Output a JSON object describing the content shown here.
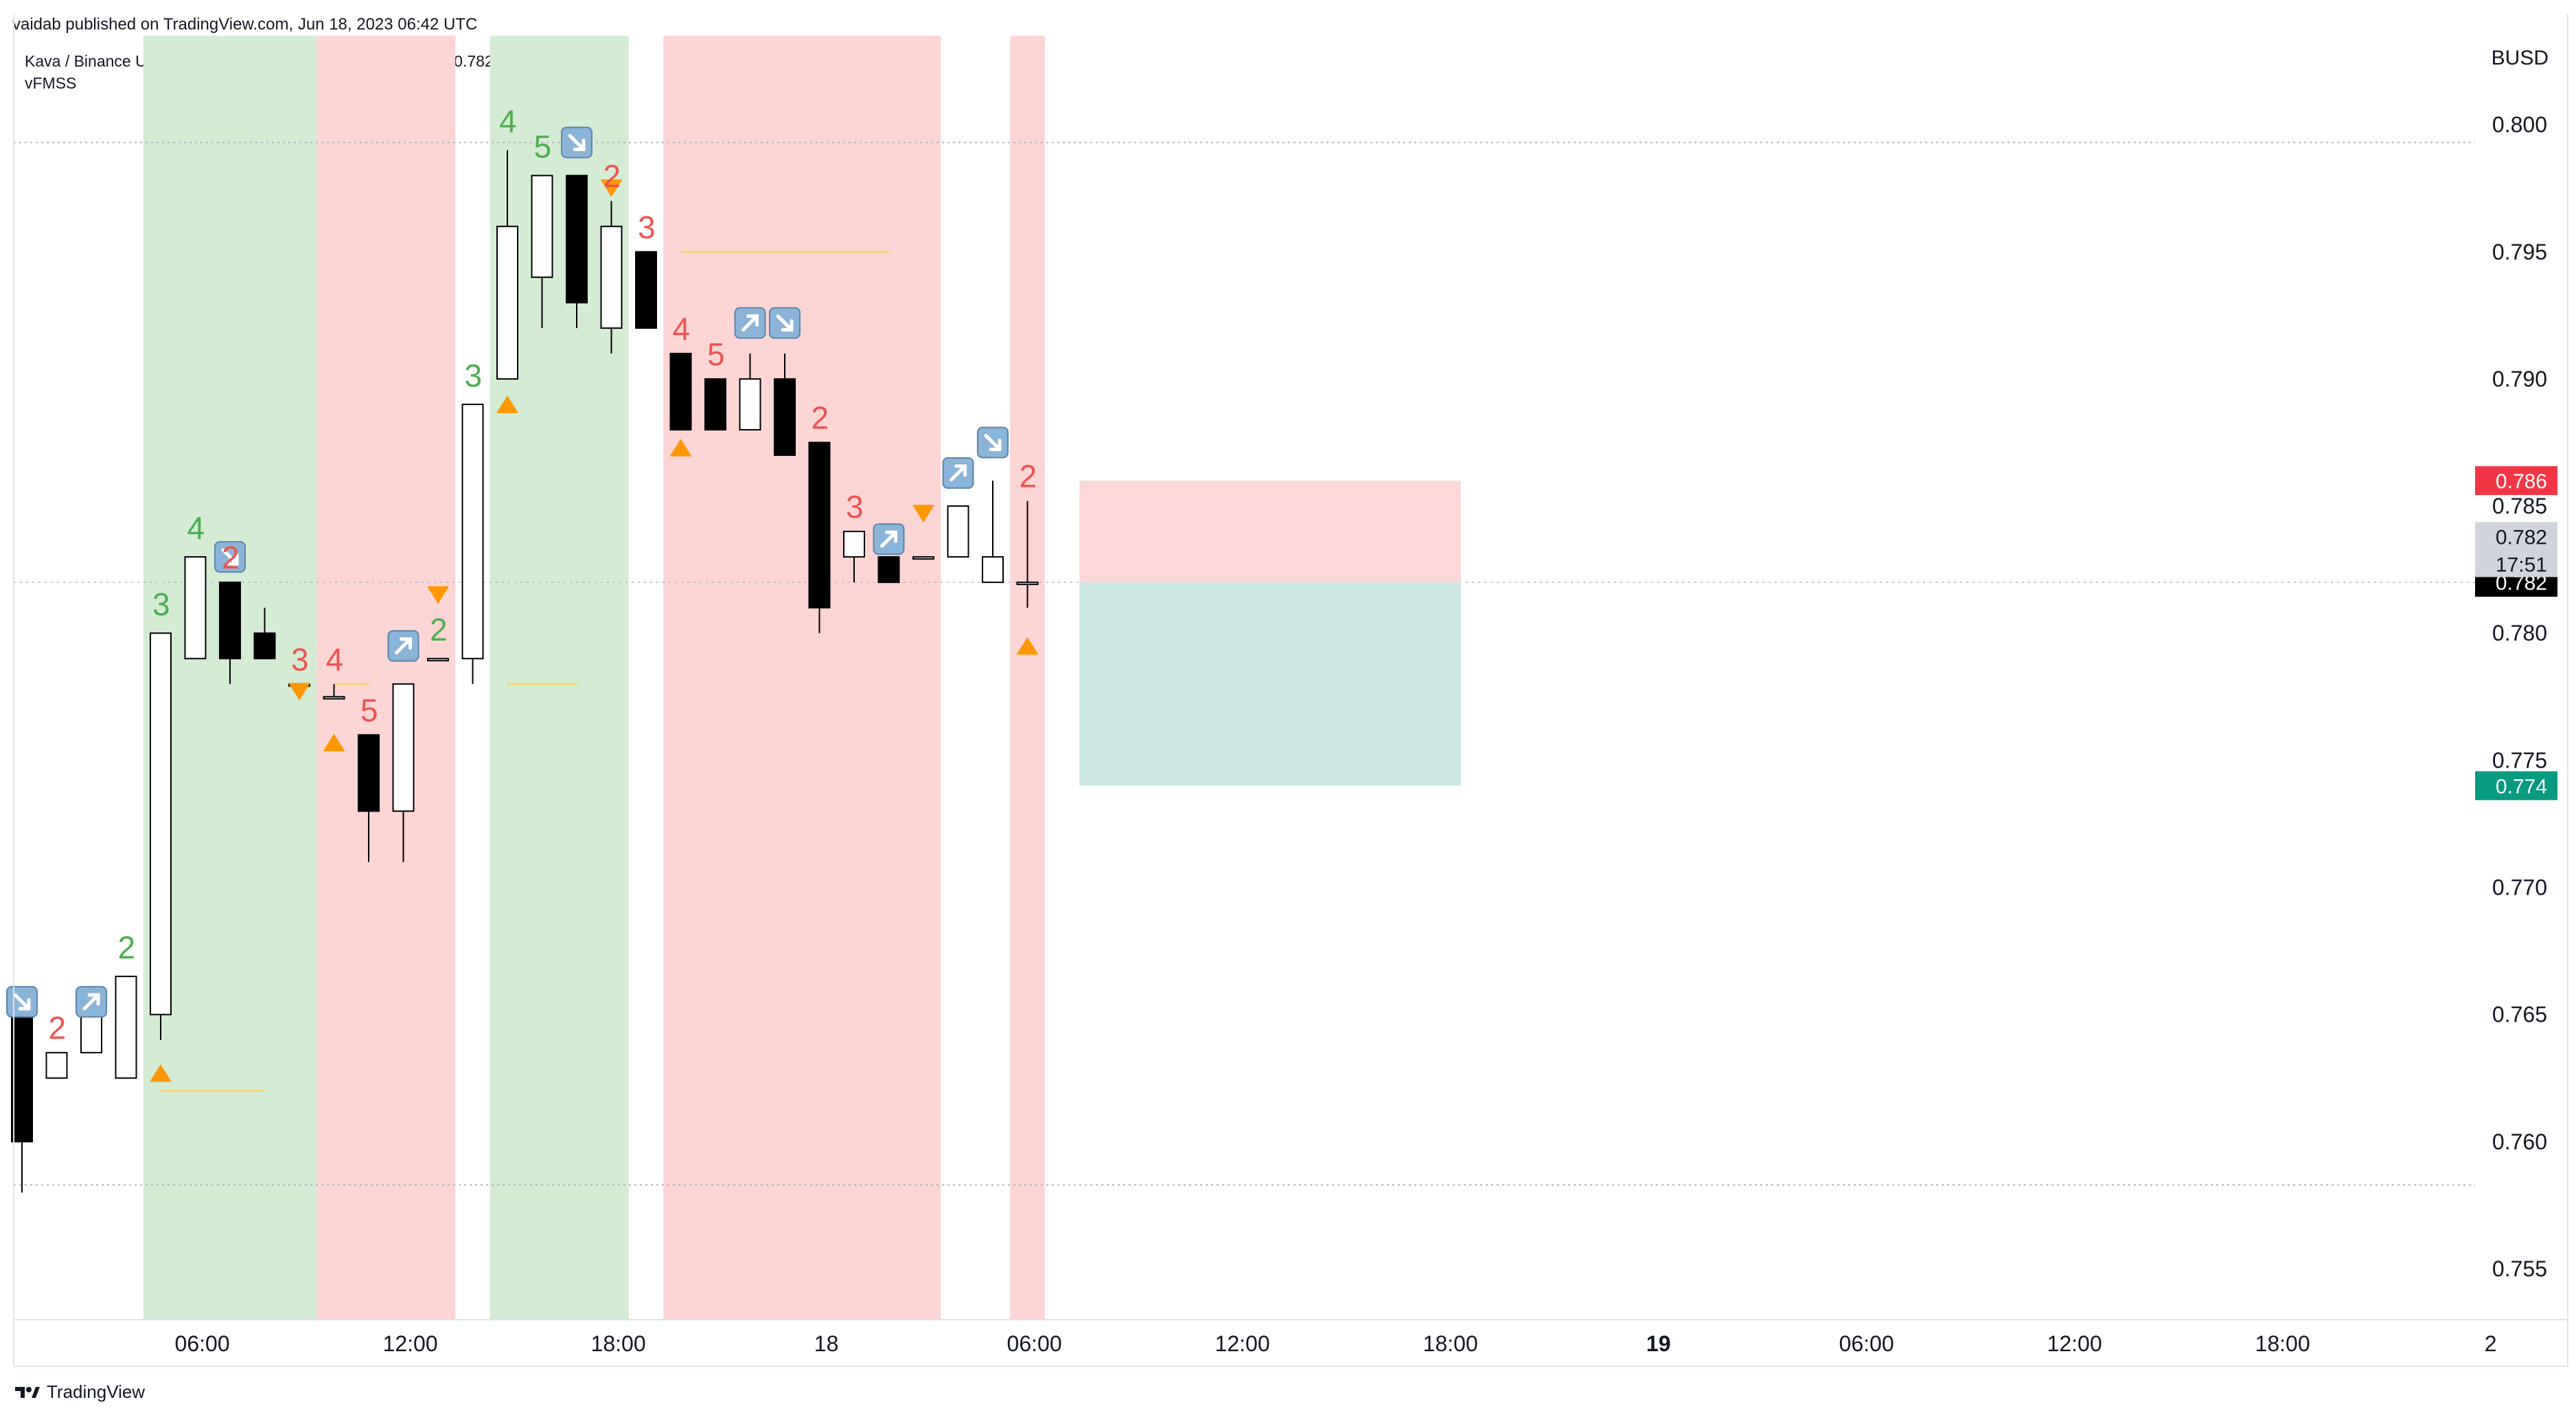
{
  "header": {
    "publisher": "vaidab published on TradingView.com, Jun 18, 2023 06:42 UTC",
    "symbol": "Kava / Binance USD, 1h, BINANCE  O0.782  H0.785  L0.781  C0.782",
    "indicator": "vFMSS",
    "currency": "BUSD"
  },
  "footer": {
    "brand": "TradingView"
  },
  "colors": {
    "bull_zone": "#d4ecd4",
    "bear_zone": "#fdd5d5",
    "green_count": "#4caf50",
    "red_count": "#ef5350",
    "marker": "#ff9800",
    "stop_zone": "#fdd8d8",
    "target_zone": "#cce8e4"
  },
  "chart_data": {
    "type": "candlestick",
    "timeframe": "1h",
    "ylim": [
      0.753,
      0.8035
    ],
    "y_ticks": [
      "0.800",
      "0.795",
      "0.790",
      "0.785",
      "0.780",
      "0.775",
      "0.770",
      "0.765",
      "0.760",
      "0.755"
    ],
    "x_ticks": [
      "06:00",
      "12:00",
      "18:00",
      "18",
      "06:00",
      "12:00",
      "18:00",
      "19",
      "06:00",
      "12:00",
      "18:00",
      "2"
    ],
    "candles": [
      {
        "o": 0.765,
        "h": 0.766,
        "l": 0.758,
        "c": 0.76
      },
      {
        "o": 0.7625,
        "h": 0.7635,
        "l": 0.7625,
        "c": 0.7635
      },
      {
        "o": 0.7635,
        "h": 0.7655,
        "l": 0.7635,
        "c": 0.7655
      },
      {
        "o": 0.7625,
        "h": 0.7665,
        "l": 0.7625,
        "c": 0.7665
      },
      {
        "o": 0.765,
        "h": 0.78,
        "l": 0.764,
        "c": 0.78
      },
      {
        "o": 0.779,
        "h": 0.783,
        "l": 0.779,
        "c": 0.783
      },
      {
        "o": 0.782,
        "h": 0.782,
        "l": 0.778,
        "c": 0.779
      },
      {
        "o": 0.78,
        "h": 0.781,
        "l": 0.779,
        "c": 0.779
      },
      {
        "o": 0.778,
        "h": 0.778,
        "l": 0.778,
        "c": 0.778
      },
      {
        "o": 0.7775,
        "h": 0.778,
        "l": 0.7775,
        "c": 0.7775
      },
      {
        "o": 0.776,
        "h": 0.776,
        "l": 0.771,
        "c": 0.773
      },
      {
        "o": 0.773,
        "h": 0.778,
        "l": 0.771,
        "c": 0.778
      },
      {
        "o": 0.779,
        "h": 0.779,
        "l": 0.779,
        "c": 0.779
      },
      {
        "o": 0.779,
        "h": 0.789,
        "l": 0.778,
        "c": 0.789
      },
      {
        "o": 0.79,
        "h": 0.799,
        "l": 0.79,
        "c": 0.796
      },
      {
        "o": 0.794,
        "h": 0.798,
        "l": 0.792,
        "c": 0.798
      },
      {
        "o": 0.798,
        "h": 0.798,
        "l": 0.792,
        "c": 0.793
      },
      {
        "o": 0.792,
        "h": 0.797,
        "l": 0.791,
        "c": 0.796
      },
      {
        "o": 0.795,
        "h": 0.795,
        "l": 0.792,
        "c": 0.792
      },
      {
        "o": 0.791,
        "h": 0.791,
        "l": 0.788,
        "c": 0.788
      },
      {
        "o": 0.79,
        "h": 0.79,
        "l": 0.788,
        "c": 0.788
      },
      {
        "o": 0.788,
        "h": 0.791,
        "l": 0.788,
        "c": 0.79
      },
      {
        "o": 0.79,
        "h": 0.791,
        "l": 0.787,
        "c": 0.787
      },
      {
        "o": 0.7875,
        "h": 0.7875,
        "l": 0.78,
        "c": 0.781
      },
      {
        "o": 0.783,
        "h": 0.784,
        "l": 0.782,
        "c": 0.784
      },
      {
        "o": 0.783,
        "h": 0.783,
        "l": 0.782,
        "c": 0.782
      },
      {
        "o": 0.783,
        "h": 0.783,
        "l": 0.783,
        "c": 0.783
      },
      {
        "o": 0.783,
        "h": 0.785,
        "l": 0.783,
        "c": 0.785
      },
      {
        "o": 0.782,
        "h": 0.786,
        "l": 0.782,
        "c": 0.783
      },
      {
        "o": 0.782,
        "h": 0.7852,
        "l": 0.781,
        "c": 0.782
      }
    ],
    "price_lines": [
      "0.786",
      "0.782",
      "0.782",
      "0.774"
    ],
    "countdown": "17:51",
    "counts": [
      {
        "i": 1,
        "label": "2",
        "color": "red"
      },
      {
        "i": 3,
        "label": "2",
        "color": "green"
      },
      {
        "i": 4,
        "label": "3",
        "color": "green"
      },
      {
        "i": 5,
        "label": "4",
        "color": "green"
      },
      {
        "i": 6,
        "label": "2",
        "color": "red"
      },
      {
        "i": 8,
        "label": "3",
        "color": "red"
      },
      {
        "i": 9,
        "label": "4",
        "color": "red"
      },
      {
        "i": 10,
        "label": "5",
        "color": "red"
      },
      {
        "i": 12,
        "label": "2",
        "color": "green"
      },
      {
        "i": 13,
        "label": "3",
        "color": "green"
      },
      {
        "i": 14,
        "label": "4",
        "color": "green"
      },
      {
        "i": 15,
        "label": "5",
        "color": "green"
      },
      {
        "i": 17,
        "label": "2",
        "color": "red"
      },
      {
        "i": 18,
        "label": "3",
        "color": "red"
      },
      {
        "i": 19,
        "label": "4",
        "color": "red"
      },
      {
        "i": 20,
        "label": "5",
        "color": "red"
      },
      {
        "i": 23,
        "label": "2",
        "color": "red"
      },
      {
        "i": 24,
        "label": "3",
        "color": "red"
      },
      {
        "i": 29,
        "label": "2",
        "color": "red"
      }
    ],
    "arrows": [
      {
        "i": 0,
        "dir": "down-right",
        "y": 0.7655
      },
      {
        "i": 2,
        "dir": "up-right",
        "y": 0.7655
      },
      {
        "i": 6,
        "dir": "down-right",
        "y": 0.783
      },
      {
        "i": 11,
        "dir": "up-right",
        "y": 0.7795
      },
      {
        "i": 16,
        "dir": "down-right",
        "y": 0.7993
      },
      {
        "i": 21,
        "dir": "up-right",
        "y": 0.7922
      },
      {
        "i": 22,
        "dir": "down-right",
        "y": 0.7922
      },
      {
        "i": 25,
        "dir": "up-right",
        "y": 0.7837
      },
      {
        "i": 27,
        "dir": "up-right",
        "y": 0.7863
      },
      {
        "i": 28,
        "dir": "down-right",
        "y": 0.7875
      }
    ],
    "markers": [
      {
        "i": 4,
        "dir": "up",
        "y": 0.7627
      },
      {
        "i": 8,
        "dir": "down",
        "y": 0.7777
      },
      {
        "i": 9,
        "dir": "up",
        "y": 0.7757
      },
      {
        "i": 12,
        "dir": "down",
        "y": 0.7815
      },
      {
        "i": 14,
        "dir": "up",
        "y": 0.789
      },
      {
        "i": 17,
        "dir": "down",
        "y": 0.7975
      },
      {
        "i": 19,
        "dir": "up",
        "y": 0.7873
      },
      {
        "i": 26,
        "dir": "down",
        "y": 0.7847
      },
      {
        "i": 29,
        "dir": "up",
        "y": 0.7795
      }
    ],
    "zones": [
      {
        "from": 3.5,
        "to": 8.5,
        "color": "bull"
      },
      {
        "from": 8.5,
        "to": 12.5,
        "color": "bear"
      },
      {
        "from": 13.5,
        "to": 17.5,
        "color": "bull"
      },
      {
        "from": 18.5,
        "to": 26.5,
        "color": "bear"
      },
      {
        "from": 28.5,
        "to": 29.5,
        "color": "bear"
      }
    ],
    "level_lines": [
      {
        "from": 4,
        "to": 7,
        "y": 0.762
      },
      {
        "from": 14,
        "to": 16,
        "y": 0.778
      },
      {
        "from": 19,
        "to": 25,
        "y": 0.795
      },
      {
        "from": 9,
        "to": 10,
        "y": 0.778
      }
    ],
    "position": {
      "entry": 0.782,
      "stop": 0.786,
      "target": 0.774,
      "from": 30.5,
      "to": 41.5
    }
  }
}
